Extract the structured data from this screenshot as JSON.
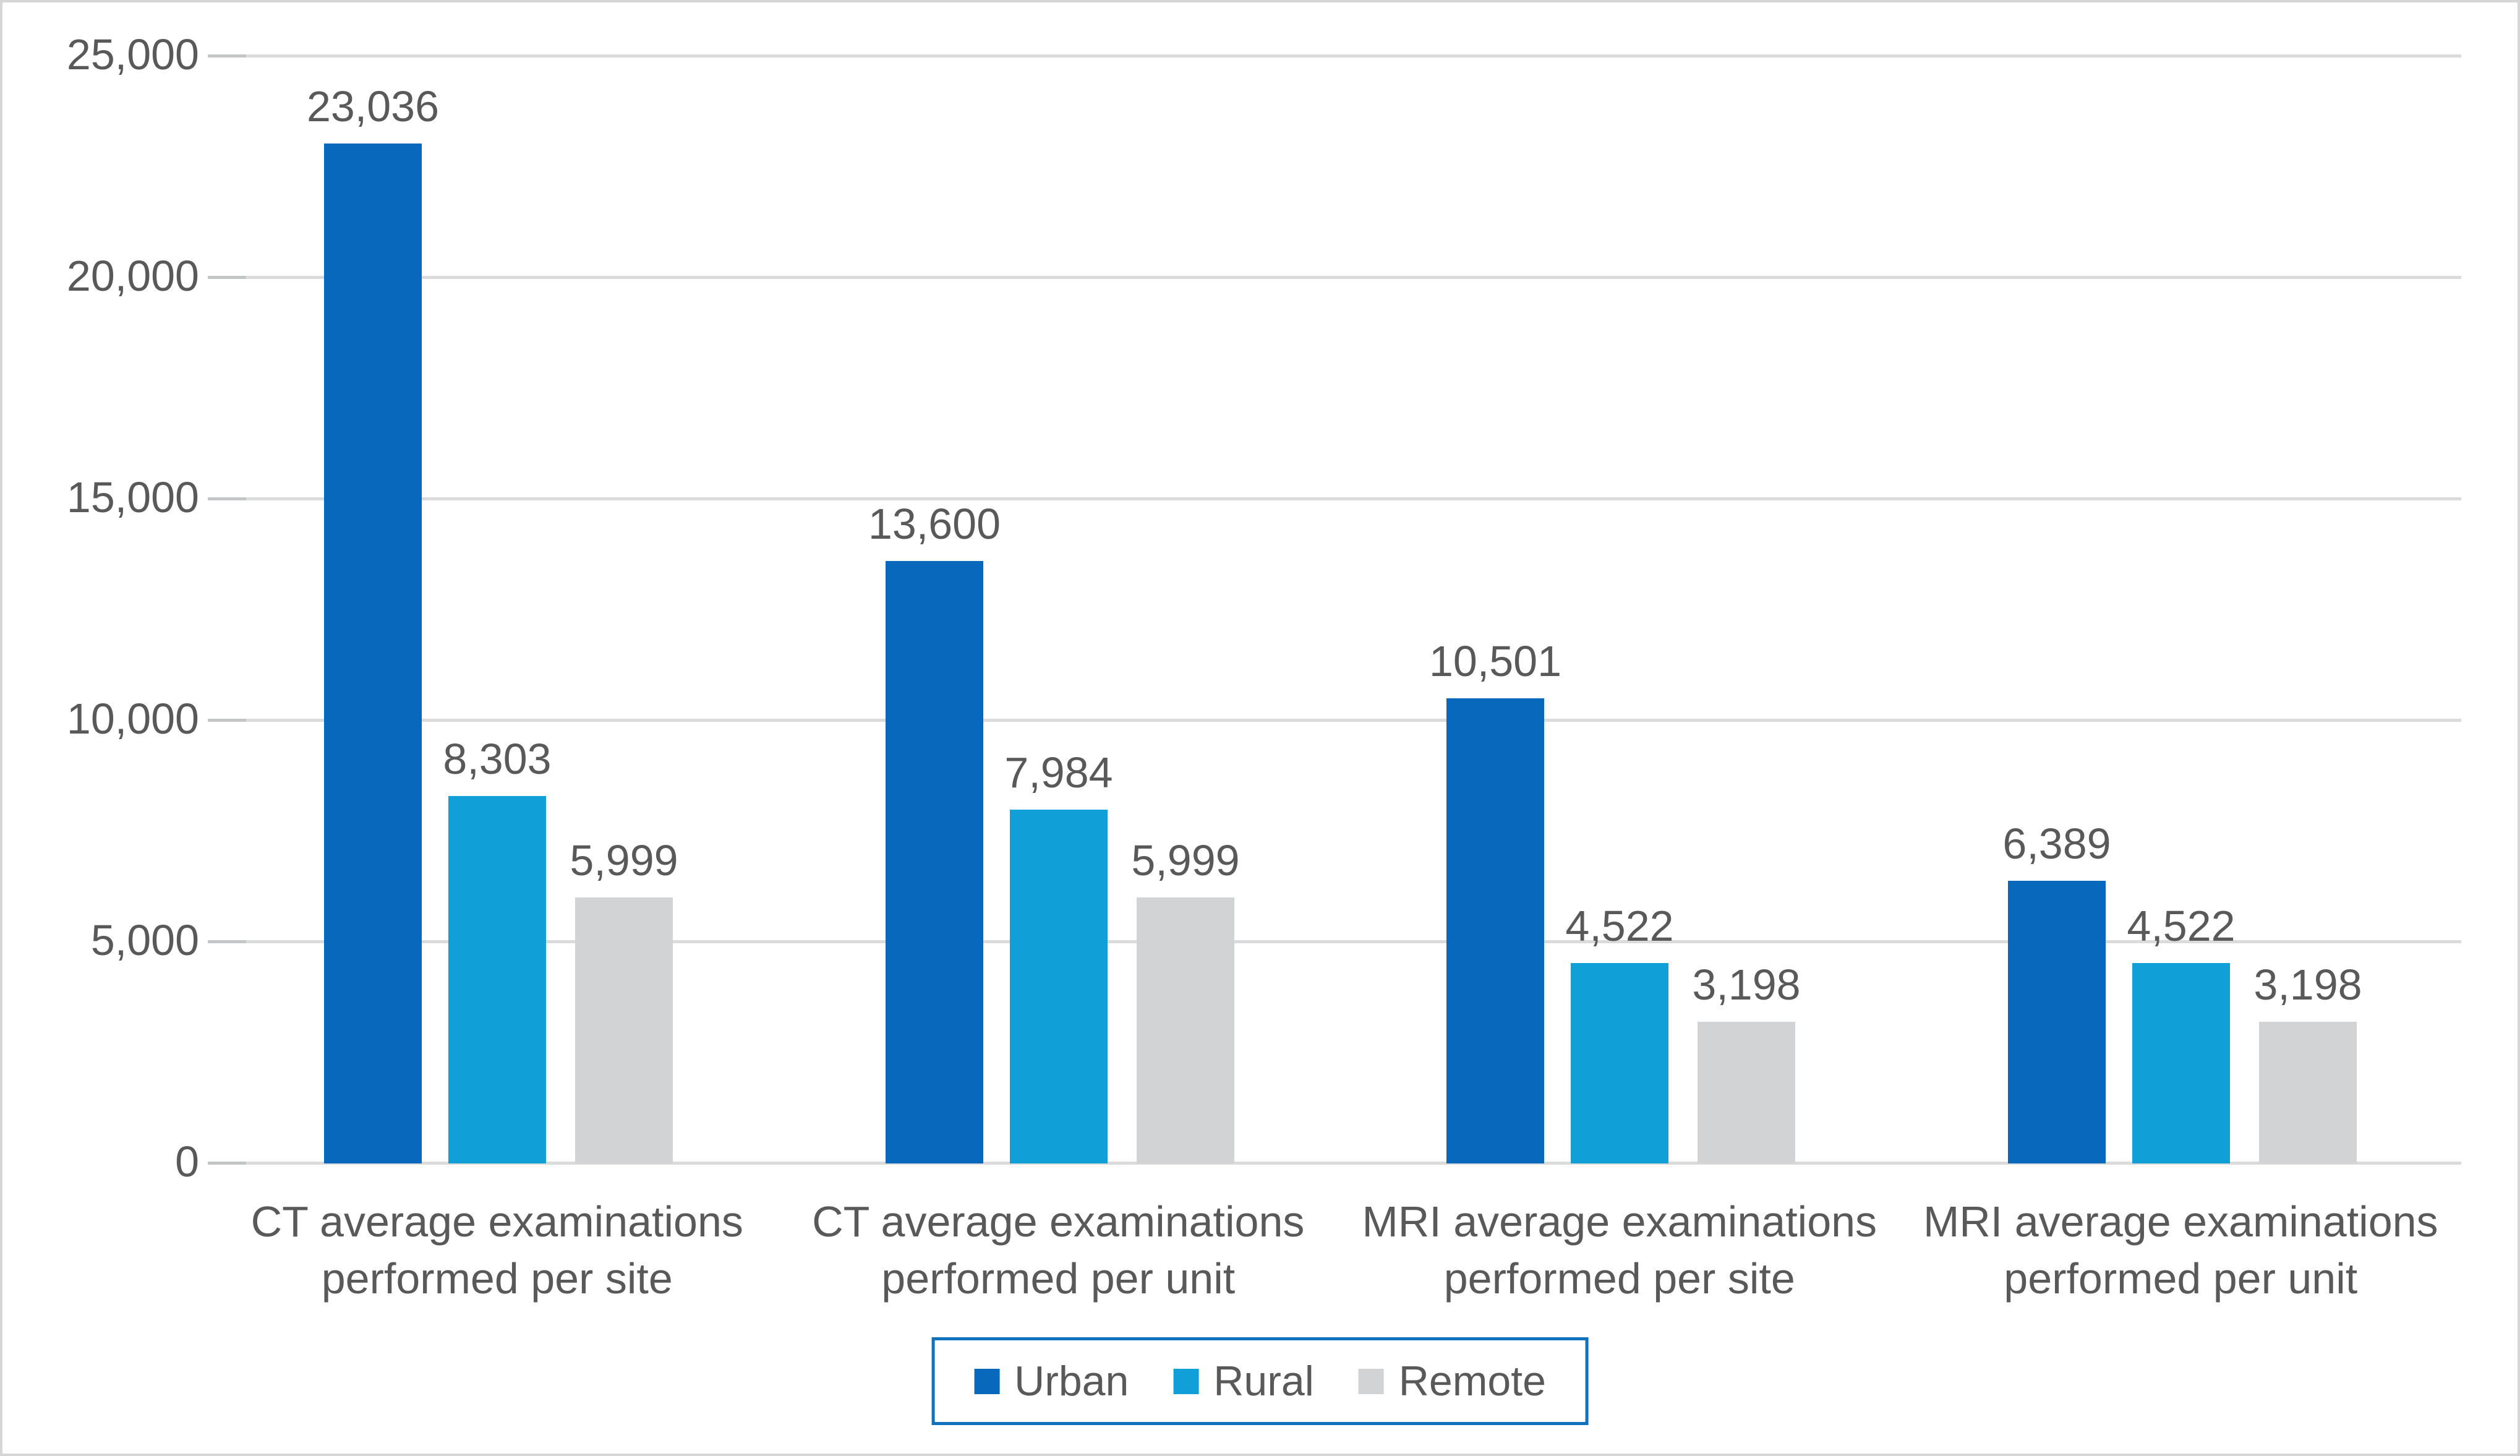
{
  "chart_data": {
    "type": "bar",
    "title": "",
    "categories": [
      "CT average examinations\nperformed per site",
      "CT average examinations\nperformed per unit",
      "MRI average examinations\nperformed per site",
      "MRI average examinations\nperformed per unit"
    ],
    "series": [
      {
        "name": "Urban",
        "color": "#0768BC",
        "values": [
          23036,
          13600,
          10501,
          6389
        ]
      },
      {
        "name": "Rural",
        "color": "#119FD8",
        "values": [
          8303,
          7984,
          4522,
          4522
        ]
      },
      {
        "name": "Remote",
        "color": "#D1D3D4",
        "values": [
          5999,
          5999,
          3198,
          3198
        ]
      }
    ],
    "data_labels": {
      "show": true,
      "format": "#,##0",
      "color": "#595959",
      "formatted": [
        [
          "23,036",
          "13,600",
          "10,501",
          "6,389"
        ],
        [
          "8,303",
          "7,984",
          "4,522",
          "4,522"
        ],
        [
          "5,999",
          "5,999",
          "3,198",
          "3,198"
        ]
      ]
    },
    "y_axis": {
      "min": 0,
      "max": 25000,
      "tick_interval": 5000,
      "tick_labels": [
        "0",
        "5,000",
        "10,000",
        "15,000",
        "20,000",
        "25,000"
      ],
      "label_color": "#595959"
    },
    "x_axis": {
      "label_color": "#595959"
    },
    "grid": {
      "show": true,
      "color": "#DBDBDB",
      "tick_color": "#C3C6C7"
    },
    "legend": {
      "position": "bottom",
      "items": [
        "Urban",
        "Rural",
        "Remote"
      ],
      "border_color": "#1072BC",
      "label_color": "#595959"
    },
    "canvas": {
      "background": "#FFFFFF",
      "border_color": "#D6D6D6"
    }
  }
}
